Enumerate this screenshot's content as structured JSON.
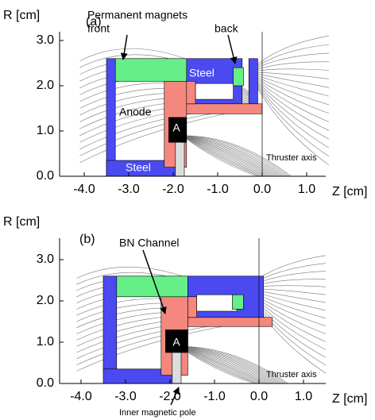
{
  "panels": [
    {
      "label": "(a)",
      "y_axis_label": "R [cm]",
      "x_axis_label": "Z [cm]",
      "xticks": [
        {
          "value": -4,
          "label": "-4.0"
        },
        {
          "value": -3,
          "label": "-3.0"
        },
        {
          "value": -2,
          "label": "-2.0"
        },
        {
          "value": -1,
          "label": "-1.0"
        },
        {
          "value": 0,
          "label": "0.0"
        },
        {
          "value": 1,
          "label": "1.0"
        }
      ],
      "yticks": [
        {
          "value": 0,
          "label": "0.0"
        },
        {
          "value": 1,
          "label": "1.0"
        },
        {
          "value": 2,
          "label": "2.0"
        },
        {
          "value": 3,
          "label": "3.0"
        }
      ],
      "annotations": [
        "Permanent magnets",
        "front",
        "back",
        "Steel",
        "Anode",
        "A",
        "Steel",
        "Thruster axis"
      ]
    },
    {
      "label": "(b)",
      "y_axis_label": "R [cm]",
      "x_axis_label": "Z [cm]",
      "xticks": [
        {
          "value": -4,
          "label": "-4.0"
        },
        {
          "value": -3,
          "label": "-3.0"
        },
        {
          "value": -2,
          "label": "-2.0"
        },
        {
          "value": -1,
          "label": "-1.0"
        },
        {
          "value": 0,
          "label": "0.0"
        },
        {
          "value": 1,
          "label": "1.0"
        }
      ],
      "yticks": [
        {
          "value": 0,
          "label": "0.0"
        },
        {
          "value": 1,
          "label": "1.0"
        },
        {
          "value": 2,
          "label": "2.0"
        },
        {
          "value": 3,
          "label": "3.0"
        }
      ],
      "annotations": [
        "BN Channel",
        "A",
        "Thruster axis",
        "Inner magnetic pole"
      ]
    }
  ]
}
